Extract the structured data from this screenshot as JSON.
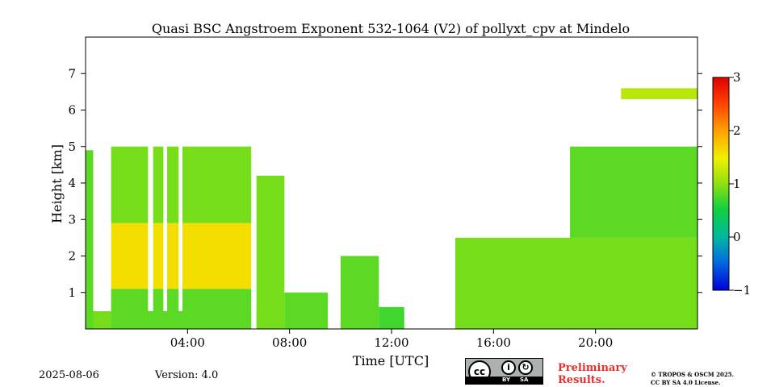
{
  "chart_data": {
    "type": "heatmap",
    "title": "Quasi BSC Angstroem Exponent 532-1064 (V2) of pollyxt_cpv at Mindelo",
    "xlabel": "Time [UTC]",
    "ylabel": "Height [km]",
    "xlim": [
      0,
      24
    ],
    "ylim": [
      0,
      8
    ],
    "x_ticks": [
      "04:00",
      "08:00",
      "12:00",
      "16:00",
      "20:00"
    ],
    "x_tick_values": [
      4,
      8,
      12,
      16,
      20
    ],
    "y_ticks": [
      "1",
      "2",
      "3",
      "4",
      "5",
      "6",
      "7"
    ],
    "y_tick_values": [
      1,
      2,
      3,
      4,
      5,
      6,
      7
    ],
    "colorbar": {
      "range": [
        -1,
        3
      ],
      "ticks": [
        "−1",
        "0",
        "1",
        "2",
        "3"
      ],
      "tick_values": [
        -1,
        0,
        1,
        2,
        3
      ],
      "colormap": "jet"
    },
    "regions": [
      {
        "x": [
          0,
          0.3
        ],
        "y": [
          0,
          4.9
        ],
        "value": 0.8
      },
      {
        "x": [
          0.3,
          1.0
        ],
        "y": [
          0,
          1.1
        ],
        "value": 0.9
      },
      {
        "x": [
          1.0,
          6.5
        ],
        "y": [
          0,
          1.1
        ],
        "value": 0.8
      },
      {
        "x": [
          1.0,
          6.5
        ],
        "y": [
          1.1,
          2.9
        ],
        "value": 1.6
      },
      {
        "x": [
          1.0,
          6.5
        ],
        "y": [
          2.9,
          5.0
        ],
        "value": 0.9
      },
      {
        "x": [
          6.7,
          7.8
        ],
        "y": [
          0,
          4.2
        ],
        "value": 0.9
      },
      {
        "x": [
          7.8,
          9.5
        ],
        "y": [
          0,
          1.0
        ],
        "value": 0.8
      },
      {
        "x": [
          10.0,
          11.5
        ],
        "y": [
          0,
          2.0
        ],
        "value": 0.8
      },
      {
        "x": [
          11.5,
          12.5
        ],
        "y": [
          0,
          0.6
        ],
        "value": 0.7
      },
      {
        "x": [
          14.5,
          24.0
        ],
        "y": [
          0,
          2.5
        ],
        "value": 0.9
      },
      {
        "x": [
          19.0,
          24.0
        ],
        "y": [
          2.5,
          5.0
        ],
        "value": 0.8
      },
      {
        "x": [
          21.0,
          24.0
        ],
        "y": [
          6.3,
          6.6
        ],
        "value": 1.2
      }
    ],
    "gaps_x": [
      [
        0.3,
        1.0
      ],
      [
        2.45,
        2.65
      ],
      [
        3.05,
        3.2
      ],
      [
        3.65,
        3.8
      ],
      [
        6.5,
        6.7
      ],
      [
        12.5,
        14.5
      ]
    ]
  },
  "footer": {
    "date": "2025-08-06",
    "version": "Version: 4.0",
    "badge_cc": "cc",
    "badge_by": "BY",
    "badge_sa": "SA",
    "prelim_line1": "Preliminary",
    "prelim_line2": "Results.",
    "license_line1": "© TROPOS & OSCM 2025.",
    "license_line2": "CC BY SA 4.0 License."
  }
}
